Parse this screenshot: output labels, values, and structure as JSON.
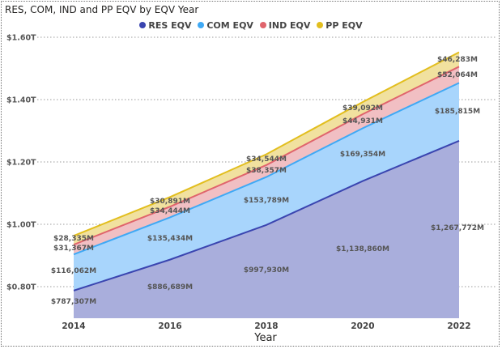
{
  "chart_data": {
    "type": "area",
    "stacked": true,
    "title": "RES, COM, IND and PP EQV by EQV Year",
    "xlabel": "Year",
    "ylabel": "",
    "x": [
      2014,
      2016,
      2018,
      2020,
      2022
    ],
    "x_tick_labels": [
      "2014",
      "2016",
      "2018",
      "2020",
      "2022"
    ],
    "y_tick_labels": [
      "$0.80T",
      "$1.00T",
      "$1.20T",
      "$1.40T",
      "$1.60T"
    ],
    "y_ticks": [
      0.8,
      1.0,
      1.2,
      1.4,
      1.6
    ],
    "y_unit": "trillions USD",
    "ylim": [
      0.7,
      1.6
    ],
    "grid": "horizontal dotted",
    "legend": "top-center",
    "series": [
      {
        "name": "RES EQV",
        "color": "#3A45B0",
        "fill": "#A9AEDC",
        "values_millions": [
          787307,
          886689,
          997930,
          1138860,
          1267772
        ],
        "labels": [
          "$787,307M",
          "$886,689M",
          "$997,930M",
          "$1,138,860M",
          "$1,267,772M"
        ]
      },
      {
        "name": "COM EQV",
        "color": "#3FA9F5",
        "fill": "#A8D5FC",
        "values_millions": [
          116062,
          135434,
          153789,
          169354,
          185815
        ],
        "labels": [
          "$116,062M",
          "$135,434M",
          "$153,789M",
          "$169,354M",
          "$185,815M"
        ]
      },
      {
        "name": "IND EQV",
        "color": "#E0646C",
        "fill": "#F1BFC3",
        "values_millions": [
          31367,
          34444,
          38357,
          44931,
          52064
        ],
        "labels": [
          "$31,367M",
          "$34,444M",
          "$38,357M",
          "$44,931M",
          "$52,064M"
        ]
      },
      {
        "name": "PP EQV",
        "color": "#E2BE1E",
        "fill": "#F1E19F",
        "values_millions": [
          28335,
          30891,
          34544,
          39092,
          46283
        ],
        "labels": [
          "$28,335M",
          "$30,891M",
          "$34,544M",
          "$39,092M",
          "$46,283M"
        ]
      }
    ]
  }
}
